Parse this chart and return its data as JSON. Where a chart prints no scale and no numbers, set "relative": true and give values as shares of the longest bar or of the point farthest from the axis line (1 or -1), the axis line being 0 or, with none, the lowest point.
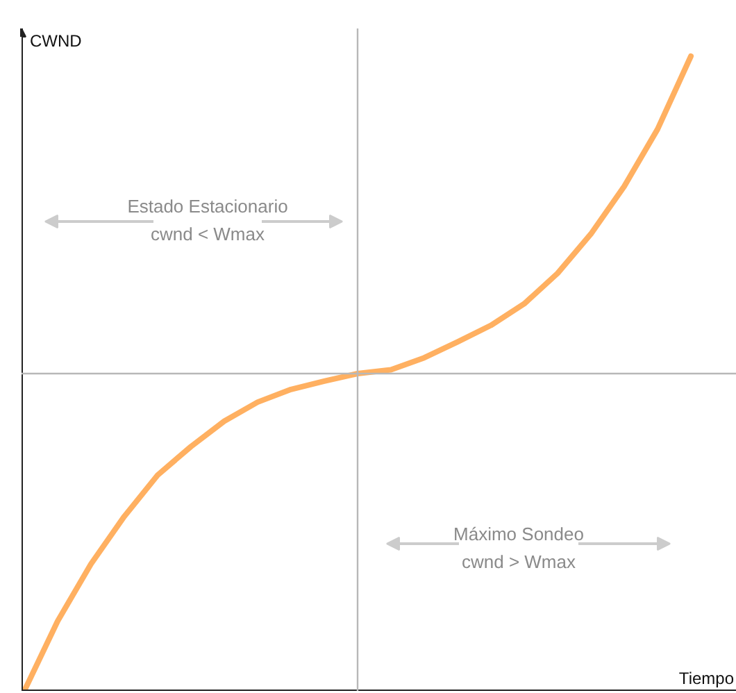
{
  "chart_data": {
    "type": "line",
    "xlabel": "Tiempo",
    "ylabel": "CWND",
    "relative": true,
    "categories": [
      null,
      null,
      null,
      null,
      null,
      null,
      null,
      null,
      null,
      null,
      null,
      null,
      null,
      null,
      null,
      null,
      null,
      null,
      null,
      null,
      null
    ],
    "series": [
      {
        "color": "#ffb061",
        "values": [
          0,
          0.11,
          0.2,
          0.275,
          0.34,
          0.385,
          0.425,
          0.455,
          0.475,
          0.488,
          0.5,
          0.506,
          0.525,
          0.55,
          0.576,
          0.61,
          0.658,
          0.72,
          0.795,
          0.885,
          1.0
        ]
      }
    ],
    "ref_lines": [
      {
        "axis": "y",
        "value": 0.5,
        "color": "#b8b8b8"
      }
    ],
    "annotations": [
      "Estado Estacionario\ncwnd < Wmax",
      "Máximo Sondeo\ncwnd > Wmax"
    ]
  }
}
